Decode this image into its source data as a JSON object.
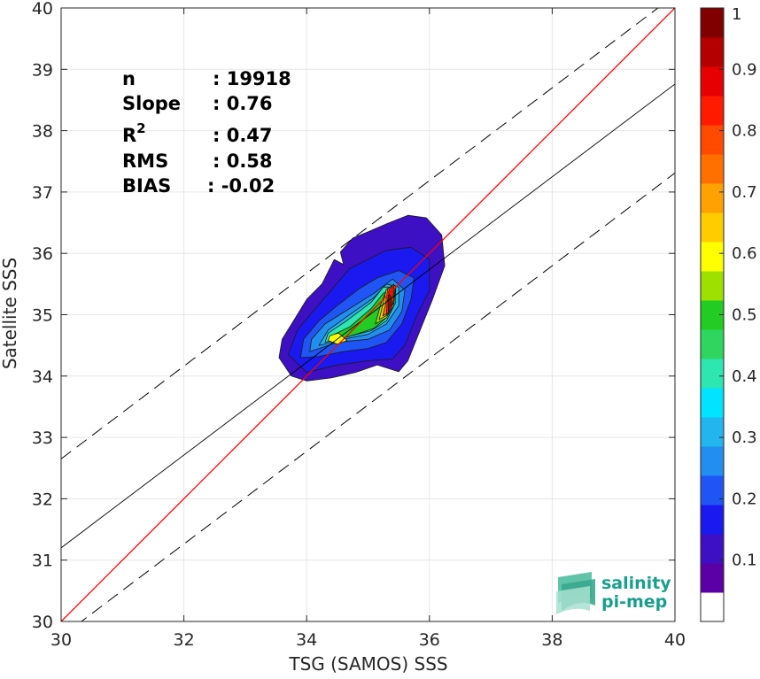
{
  "chart_data": {
    "type": "contour",
    "xlabel": "TSG (SAMOS) SSS",
    "ylabel": "Satellite SSS",
    "xlim": [
      30,
      40
    ],
    "ylim": [
      30,
      40
    ],
    "xticks": [
      "30",
      "32",
      "34",
      "36",
      "38",
      "40"
    ],
    "yticks": [
      "30",
      "31",
      "32",
      "33",
      "34",
      "35",
      "36",
      "37",
      "38",
      "39",
      "40"
    ],
    "grid": true,
    "stats": {
      "n_label": "n",
      "n_value": ": 19918",
      "slope_label": "Slope",
      "slope_value": ": 0.76",
      "r2_label": "R",
      "r2_sup": "2",
      "r2_value": ": 0.47",
      "rms_label": "RMS",
      "rms_value": ": 0.58",
      "bias_label": "BIAS",
      "bias_value": ": -0.02"
    },
    "lines": {
      "identity": {
        "color": "#ff0000",
        "points": [
          [
            30,
            30
          ],
          [
            40,
            40
          ]
        ]
      },
      "fit": {
        "color": "#000000",
        "points": [
          [
            30,
            31.2
          ],
          [
            40,
            38.76
          ]
        ]
      },
      "fit_upper": {
        "style": "dashed",
        "points": [
          [
            30,
            32.65
          ],
          [
            40,
            40.21
          ]
        ]
      },
      "fit_lower": {
        "style": "dashed",
        "points": [
          [
            30,
            29.75
          ],
          [
            40,
            37.31
          ]
        ]
      }
    },
    "colorbar": {
      "range": [
        0,
        1
      ],
      "ticks": [
        "0.1",
        "0.2",
        "0.3",
        "0.4",
        "0.5",
        "0.6",
        "0.7",
        "0.8",
        "0.9",
        "1"
      ],
      "colors": [
        "#ffffff",
        "#5b00a6",
        "#3d10c4",
        "#1a1af0",
        "#1f55f5",
        "#228ef0",
        "#23b6ee",
        "#00e4ff",
        "#2ee6b0",
        "#2ed660",
        "#22cc22",
        "#9ee000",
        "#ffff00",
        "#ffcc00",
        "#ffa100",
        "#ff7000",
        "#ff4a00",
        "#ff1a00",
        "#e60000",
        "#b40000",
        "#800000"
      ]
    },
    "density_levels": [
      {
        "level": 0.05,
        "color": "#3d10c4",
        "points": [
          [
            33.55,
            34.3
          ],
          [
            33.75,
            34.0
          ],
          [
            34.0,
            33.92
          ],
          [
            34.4,
            33.97
          ],
          [
            34.8,
            34.06
          ],
          [
            35.15,
            34.18
          ],
          [
            35.5,
            34.07
          ],
          [
            35.65,
            34.25
          ],
          [
            35.85,
            34.75
          ],
          [
            36.05,
            35.25
          ],
          [
            36.25,
            35.8
          ],
          [
            36.2,
            36.3
          ],
          [
            35.95,
            36.58
          ],
          [
            35.65,
            36.62
          ],
          [
            35.3,
            36.48
          ],
          [
            35.0,
            36.35
          ],
          [
            34.75,
            36.25
          ],
          [
            34.55,
            36.02
          ],
          [
            34.6,
            35.82
          ],
          [
            34.45,
            35.9
          ],
          [
            34.25,
            35.5
          ],
          [
            34.0,
            35.25
          ],
          [
            33.8,
            34.92
          ],
          [
            33.6,
            34.6
          ]
        ]
      },
      {
        "level": 0.1,
        "color": "#1a1af0",
        "points": [
          [
            33.7,
            34.35
          ],
          [
            34.0,
            34.06
          ],
          [
            34.5,
            34.18
          ],
          [
            35.0,
            34.25
          ],
          [
            35.4,
            34.28
          ],
          [
            35.6,
            34.5
          ],
          [
            35.8,
            35.0
          ],
          [
            36.0,
            35.4
          ],
          [
            36.0,
            35.9
          ],
          [
            35.7,
            36.1
          ],
          [
            35.3,
            36.05
          ],
          [
            35.0,
            35.9
          ],
          [
            34.7,
            35.75
          ],
          [
            34.4,
            35.4
          ],
          [
            34.1,
            35.05
          ],
          [
            33.85,
            34.75
          ]
        ]
      },
      {
        "level": 0.2,
        "color": "#1f55f5",
        "points": [
          [
            33.9,
            34.3
          ],
          [
            34.2,
            34.32
          ],
          [
            34.6,
            34.4
          ],
          [
            35.0,
            34.45
          ],
          [
            35.3,
            34.55
          ],
          [
            35.55,
            34.85
          ],
          [
            35.7,
            35.25
          ],
          [
            35.75,
            35.6
          ],
          [
            35.5,
            35.72
          ],
          [
            35.15,
            35.6
          ],
          [
            34.85,
            35.42
          ],
          [
            34.5,
            35.15
          ],
          [
            34.2,
            34.9
          ],
          [
            33.95,
            34.6
          ]
        ]
      },
      {
        "level": 0.3,
        "color": "#228ef0",
        "points": [
          [
            34.05,
            34.4
          ],
          [
            34.5,
            34.55
          ],
          [
            35.0,
            34.6
          ],
          [
            35.35,
            34.75
          ],
          [
            35.55,
            35.05
          ],
          [
            35.6,
            35.4
          ],
          [
            35.4,
            35.58
          ],
          [
            35.1,
            35.35
          ],
          [
            34.7,
            35.1
          ],
          [
            34.3,
            34.85
          ],
          [
            34.08,
            34.6
          ]
        ]
      },
      {
        "level": 0.4,
        "color": "#23b6ee",
        "points": [
          [
            34.2,
            34.5
          ],
          [
            34.6,
            34.6
          ],
          [
            35.0,
            34.68
          ],
          [
            35.3,
            34.85
          ],
          [
            35.5,
            35.15
          ],
          [
            35.5,
            35.45
          ],
          [
            35.3,
            35.5
          ],
          [
            35.1,
            35.28
          ],
          [
            34.7,
            35.0
          ],
          [
            34.35,
            34.75
          ]
        ]
      },
      {
        "level": 0.5,
        "color": "#2ee6b0",
        "points": [
          [
            34.3,
            34.55
          ],
          [
            34.7,
            34.65
          ],
          [
            35.05,
            34.74
          ],
          [
            35.3,
            34.9
          ],
          [
            35.45,
            35.2
          ],
          [
            35.45,
            35.45
          ],
          [
            35.25,
            35.45
          ],
          [
            35.05,
            35.2
          ],
          [
            34.65,
            34.9
          ],
          [
            34.35,
            34.7
          ]
        ]
      },
      {
        "level": 0.6,
        "color": "#22cc22",
        "points": [
          [
            34.45,
            34.58
          ],
          [
            34.8,
            34.68
          ],
          [
            35.1,
            34.78
          ],
          [
            35.3,
            34.95
          ],
          [
            35.42,
            35.2
          ],
          [
            35.43,
            35.45
          ],
          [
            35.25,
            35.35
          ],
          [
            35.05,
            35.1
          ],
          [
            34.7,
            34.8
          ],
          [
            34.45,
            34.68
          ]
        ]
      },
      {
        "level": 0.7,
        "color": "#9ee000",
        "points": [
          [
            35.12,
            34.85
          ],
          [
            35.3,
            34.95
          ],
          [
            35.42,
            35.15
          ],
          [
            35.45,
            35.45
          ],
          [
            35.3,
            35.4
          ],
          [
            35.2,
            35.15
          ]
        ]
      },
      {
        "level": 0.72,
        "color": "#ffff00",
        "points": [
          [
            34.35,
            34.58
          ],
          [
            34.5,
            34.52
          ],
          [
            34.66,
            34.58
          ],
          [
            34.52,
            34.7
          ],
          [
            34.38,
            34.66
          ]
        ]
      },
      {
        "level": 0.8,
        "color": "#ffcc00",
        "points": [
          [
            35.18,
            34.92
          ],
          [
            35.32,
            35.0
          ],
          [
            35.42,
            35.2
          ],
          [
            35.44,
            35.48
          ],
          [
            35.3,
            35.42
          ],
          [
            35.24,
            35.15
          ]
        ]
      },
      {
        "level": 0.85,
        "color": "#ff7000",
        "points": [
          [
            35.24,
            34.98
          ],
          [
            35.36,
            35.05
          ],
          [
            35.42,
            35.25
          ],
          [
            35.42,
            35.5
          ],
          [
            35.32,
            35.42
          ],
          [
            35.28,
            35.15
          ]
        ]
      },
      {
        "level": 0.9,
        "color": "#ff1a00",
        "points": [
          [
            35.3,
            35.0
          ],
          [
            35.38,
            35.1
          ],
          [
            35.4,
            35.3
          ],
          [
            35.4,
            35.48
          ],
          [
            35.34,
            35.4
          ],
          [
            35.31,
            35.2
          ]
        ]
      },
      {
        "level": 1.0,
        "color": "#b40000",
        "points": [
          [
            35.33,
            35.05
          ],
          [
            35.37,
            35.15
          ],
          [
            35.37,
            35.3
          ],
          [
            35.34,
            35.35
          ],
          [
            35.33,
            35.2
          ]
        ]
      }
    ]
  },
  "logo": {
    "line1": "salinity",
    "line2": "pi-mep"
  }
}
